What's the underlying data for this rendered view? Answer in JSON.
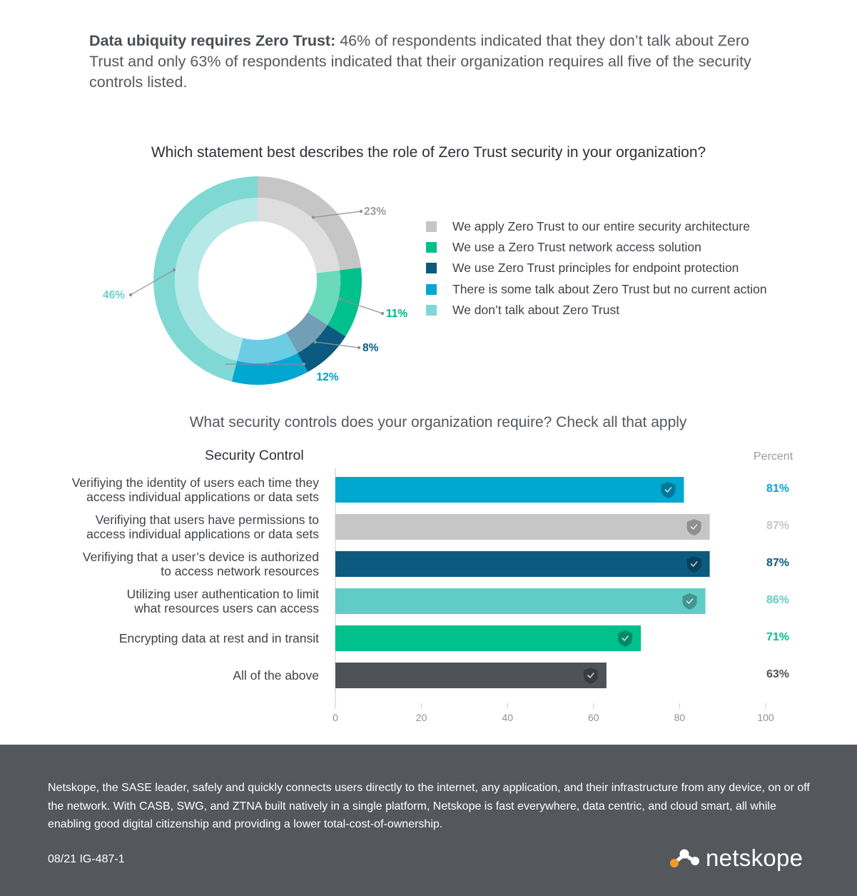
{
  "intro": {
    "bold": "Data ubiquity requires Zero Trust:",
    "text": " 46% of respondents indicated that they don’t talk about Zero Trust and only 63% of respondents indicated that their organization requires all five of the security controls listed."
  },
  "colors": {
    "gray": "#c6c6c6",
    "green": "#00c08b",
    "navy": "#0c5a80",
    "blue": "#00a7d1",
    "teal": "#7fd8d4",
    "mint": "#5fcdc6",
    "dark": "#4f5257",
    "footer": "#54575c"
  },
  "chart_data": [
    {
      "type": "pie",
      "title": "Which statement best describes the role of Zero Trust security in your organization?",
      "series": [
        {
          "name": "We apply Zero Trust to our entire security architecture",
          "value": 23,
          "label": "23%",
          "color": "#c6c6c6",
          "label_color": "#9a9ca0"
        },
        {
          "name": "We use a Zero Trust network access solution",
          "value": 11,
          "label": "11%",
          "color": "#00c08b",
          "label_color": "#00b386"
        },
        {
          "name": "We use Zero Trust principles for endpoint protection",
          "value": 8,
          "label": "8%",
          "color": "#0c5a80",
          "label_color": "#0c5a80"
        },
        {
          "name": "There is some talk about Zero Trust but no current action",
          "value": 12,
          "label": "12%",
          "color": "#00a7d1",
          "label_color": "#00a0c8"
        },
        {
          "name": "We don’t talk about Zero Trust",
          "value": 46,
          "label": "46%",
          "color": "#7fd8d4",
          "label_color": "#6fcfcb"
        }
      ]
    },
    {
      "type": "bar",
      "title": "What security controls does your organization require? Check all that apply",
      "category_header": "Security Control",
      "value_header": "Percent",
      "xlim": [
        0,
        100
      ],
      "xticks": [
        "0",
        "20",
        "40",
        "60",
        "80",
        "100"
      ],
      "bars": [
        {
          "label_lines": [
            "Verifiying the identity of users each time they",
            "access individual applications or data sets"
          ],
          "value": 81,
          "label": "81%",
          "color": "#00a7d1",
          "label_color": "#00a7d1"
        },
        {
          "label_lines": [
            "Verifiying that users have permissions to",
            "access individual applications or data sets"
          ],
          "value": 87,
          "label": "87%",
          "color": "#c6c6c6",
          "label_color": "#c6c6c6"
        },
        {
          "label_lines": [
            "Verifiying that a user’s device is authorized",
            "to access network resources"
          ],
          "value": 87,
          "label": "87%",
          "color": "#0c5a80",
          "label_color": "#0c5a80"
        },
        {
          "label_lines": [
            "Utilizing user authentication to limit",
            "what resources users can access"
          ],
          "value": 86,
          "label": "86%",
          "color": "#5fcdc6",
          "label_color": "#5fcdc6"
        },
        {
          "label_lines": [
            "Encrypting data at rest and in transit"
          ],
          "value": 71,
          "label": "71%",
          "color": "#00c08b",
          "label_color": "#00c08b"
        },
        {
          "label_lines": [
            "All of the above"
          ],
          "value": 63,
          "label": "63%",
          "color": "#4f5257",
          "label_color": "#4f5257"
        }
      ]
    }
  ],
  "footer": {
    "text": "Netskope, the SASE leader, safely and quickly connects users directly to the internet, any application, and their infrastructure from any device, on or off the network. With CASB, SWG, and ZTNA built natively in a single platform, Netskope is fast everywhere, data centric, and cloud smart, all while enabling good digital citizenship and providing a lower total-cost-of-ownership.",
    "code": "08/21 IG-487-1",
    "logo_text": "netskope"
  }
}
